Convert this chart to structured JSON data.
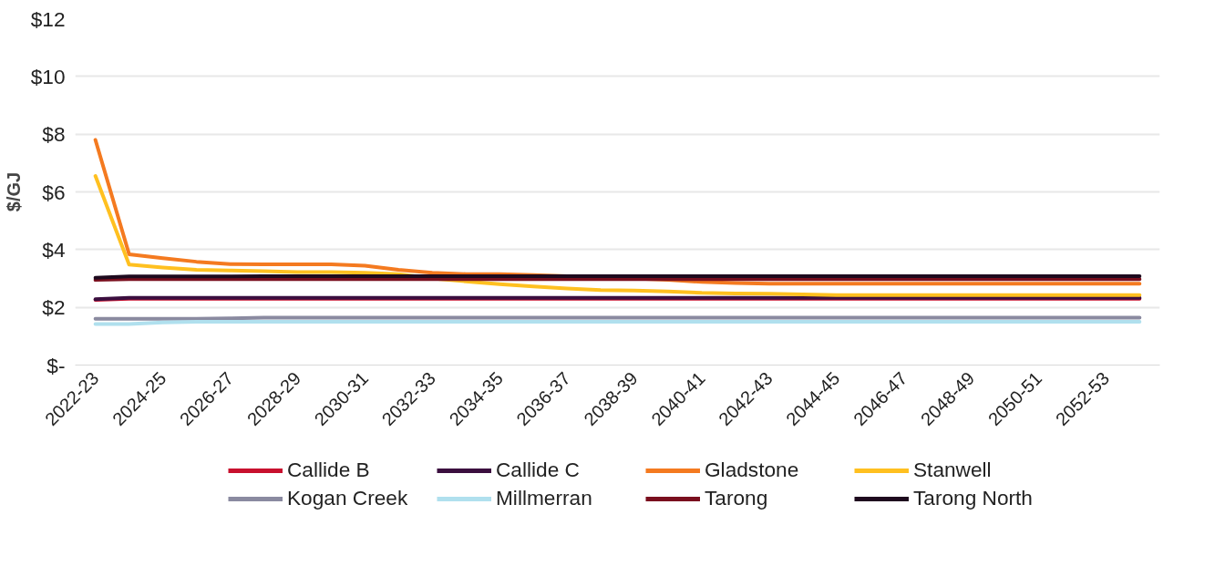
{
  "chart_data": {
    "type": "line",
    "ylabel": "$/GJ",
    "categories": [
      "2022-23",
      null,
      "2024-25",
      null,
      "2026-27",
      null,
      "2028-29",
      null,
      "2030-31",
      null,
      "2032-33",
      null,
      "2034-35",
      null,
      "2036-37",
      null,
      "2038-39",
      null,
      "2040-41",
      null,
      "2042-43",
      null,
      "2044-45",
      null,
      "2046-47",
      null,
      "2048-49",
      null,
      "2050-51",
      null,
      "2052-53",
      null
    ],
    "series": [
      {
        "name": "Callide B",
        "color": "#c8102e",
        "values": [
          2.26,
          2.3,
          2.3,
          2.3,
          2.3,
          2.3,
          2.3,
          2.3,
          2.3,
          2.3,
          2.3,
          2.3,
          2.3,
          2.3,
          2.3,
          2.3,
          2.3,
          2.3,
          2.3,
          2.3,
          2.3,
          2.3,
          2.3,
          2.3,
          2.3,
          2.3,
          2.3,
          2.3,
          2.3,
          2.3,
          2.3,
          2.3
        ]
      },
      {
        "name": "Callide C",
        "color": "#3b0f3f",
        "values": [
          2.28,
          2.33,
          2.33,
          2.33,
          2.33,
          2.33,
          2.33,
          2.33,
          2.33,
          2.33,
          2.33,
          2.33,
          2.33,
          2.33,
          2.33,
          2.33,
          2.33,
          2.33,
          2.33,
          2.33,
          2.33,
          2.33,
          2.33,
          2.33,
          2.33,
          2.33,
          2.33,
          2.33,
          2.33,
          2.33,
          2.33,
          2.33
        ]
      },
      {
        "name": "Gladstone",
        "color": "#f47a20",
        "values": [
          7.8,
          3.84,
          3.7,
          3.58,
          3.5,
          3.49,
          3.49,
          3.49,
          3.44,
          3.3,
          3.2,
          3.15,
          3.15,
          3.12,
          3.08,
          3.05,
          3.0,
          2.95,
          2.88,
          2.84,
          2.82,
          2.82,
          2.82,
          2.82,
          2.82,
          2.82,
          2.82,
          2.82,
          2.82,
          2.82,
          2.82,
          2.82
        ]
      },
      {
        "name": "Stanwell",
        "color": "#ffc020",
        "values": [
          6.55,
          3.48,
          3.38,
          3.3,
          3.28,
          3.25,
          3.22,
          3.22,
          3.2,
          3.15,
          3.0,
          2.9,
          2.8,
          2.72,
          2.65,
          2.6,
          2.58,
          2.55,
          2.5,
          2.48,
          2.47,
          2.45,
          2.42,
          2.42,
          2.42,
          2.42,
          2.42,
          2.42,
          2.42,
          2.42,
          2.42,
          2.42
        ]
      },
      {
        "name": "Kogan Creek",
        "color": "#8a8aa0",
        "values": [
          1.6,
          1.6,
          1.6,
          1.6,
          1.62,
          1.64,
          1.64,
          1.64,
          1.64,
          1.64,
          1.64,
          1.64,
          1.64,
          1.64,
          1.64,
          1.64,
          1.64,
          1.64,
          1.64,
          1.64,
          1.64,
          1.64,
          1.64,
          1.64,
          1.64,
          1.64,
          1.64,
          1.64,
          1.64,
          1.64,
          1.64,
          1.64
        ]
      },
      {
        "name": "Millmerran",
        "color": "#b0e0ee",
        "values": [
          1.42,
          1.42,
          1.48,
          1.5,
          1.5,
          1.5,
          1.5,
          1.5,
          1.5,
          1.5,
          1.5,
          1.5,
          1.5,
          1.5,
          1.5,
          1.5,
          1.5,
          1.5,
          1.5,
          1.5,
          1.5,
          1.5,
          1.5,
          1.5,
          1.5,
          1.5,
          1.5,
          1.5,
          1.5,
          1.5,
          1.5,
          1.5
        ]
      },
      {
        "name": "Tarong",
        "color": "#7a0f1e",
        "values": [
          2.95,
          2.98,
          2.98,
          2.98,
          2.98,
          2.98,
          2.98,
          2.98,
          2.98,
          2.98,
          2.98,
          2.98,
          2.98,
          2.98,
          2.98,
          2.98,
          2.98,
          2.98,
          2.98,
          2.98,
          2.98,
          2.98,
          2.98,
          2.98,
          2.98,
          2.98,
          2.98,
          2.98,
          2.98,
          2.98,
          2.98,
          2.98
        ]
      },
      {
        "name": "Tarong North",
        "color": "#1e0a1e",
        "values": [
          3.02,
          3.07,
          3.07,
          3.07,
          3.07,
          3.08,
          3.08,
          3.08,
          3.08,
          3.08,
          3.08,
          3.08,
          3.08,
          3.08,
          3.08,
          3.08,
          3.08,
          3.08,
          3.08,
          3.08,
          3.08,
          3.08,
          3.08,
          3.08,
          3.08,
          3.08,
          3.08,
          3.08,
          3.08,
          3.08,
          3.08,
          3.08
        ]
      }
    ],
    "ylim": [
      0,
      12
    ],
    "yticks": [
      {
        "value": 0,
        "label": "$-"
      },
      {
        "value": 2,
        "label": "$2"
      },
      {
        "value": 4,
        "label": "$4"
      },
      {
        "value": 6,
        "label": "$6"
      },
      {
        "value": 8,
        "label": "$8"
      },
      {
        "value": 10,
        "label": "$10"
      },
      {
        "value": 12,
        "label": "$12"
      }
    ],
    "grid": "y",
    "legend": "bottom",
    "marker": "none",
    "line_style": "solid"
  }
}
